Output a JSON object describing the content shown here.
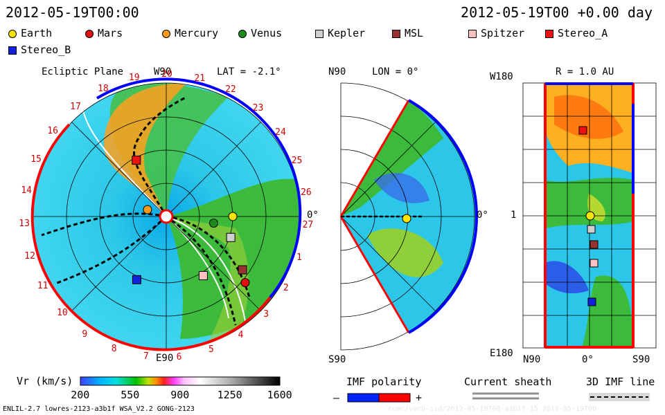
{
  "header": {
    "left_time": "2012-05-19T00:00",
    "right_time": "2012-05-19T00 +0.00 day"
  },
  "legend": [
    {
      "name": "Earth",
      "color": "#ffe400",
      "shape": "circle"
    },
    {
      "name": "Mars",
      "color": "#e01010",
      "shape": "circle"
    },
    {
      "name": "Mercury",
      "color": "#ff9a1a",
      "shape": "circle"
    },
    {
      "name": "Venus",
      "color": "#1e8a1e",
      "shape": "circle"
    },
    {
      "name": "Kepler",
      "color": "#d0d0d0",
      "shape": "square"
    },
    {
      "name": "MSL",
      "color": "#993333",
      "shape": "square"
    },
    {
      "name": "Spitzer",
      "color": "#ffc0c0",
      "shape": "square"
    },
    {
      "name": "Stereo_A",
      "color": "#ee1111",
      "shape": "square"
    },
    {
      "name": "Stereo_B",
      "color": "#1122dd",
      "shape": "square"
    }
  ],
  "panels": {
    "ecliptic": {
      "title": "Ecliptic Plane",
      "lat_label": "LAT = -2.1°",
      "top": "W90",
      "bottom": "E90",
      "right": "0°",
      "sector_numbers": [
        "19",
        "20",
        "21",
        "22",
        "23",
        "24",
        "25",
        "26",
        "27",
        "1",
        "2",
        "3",
        "4",
        "5",
        "6",
        "7",
        "8",
        "9",
        "10",
        "11",
        "12",
        "13",
        "14",
        "15",
        "16",
        "17",
        "18"
      ]
    },
    "meridional": {
      "top": "N90",
      "lon_label": "LON = 0°",
      "bottom": "S90",
      "right": "0°"
    },
    "radial": {
      "title": "R = 1.0 AU",
      "top_left": "W180",
      "bottom_left": "E180",
      "mid_left": "1",
      "x_left": "N90",
      "x_mid": "0°",
      "x_right": "S90"
    }
  },
  "colorbar": {
    "label": "Vr (km/s)",
    "ticks": [
      "200",
      "550",
      "900",
      "1250",
      "1600"
    ],
    "range": [
      200,
      1600
    ]
  },
  "imf_polarity": {
    "label": "IMF polarity",
    "minus": "–",
    "plus": "+",
    "colors": [
      "#0022ff",
      "#ff0000"
    ]
  },
  "current_sheath": {
    "label": "Current sheath"
  },
  "imf_line": {
    "label": "3D IMF line"
  },
  "footer": {
    "model": "ENLIL-2.7 lowres-2123-a3b1f WSA_V2.2 GONG-2123",
    "watermark": "ccmc/vecb-cid/2012-05-19T00-a3b1f-15 2012-05-19T00"
  },
  "chart_data": {
    "type": "heatmap",
    "quantity": "Vr (km/s)",
    "color_range": [
      200,
      1600
    ],
    "objects_ecliptic": [
      {
        "name": "Earth",
        "r_au": 1.0,
        "angle_deg": 0
      },
      {
        "name": "Mercury",
        "r_au": 0.3,
        "angle_deg": 160
      },
      {
        "name": "Venus",
        "r_au": 0.72,
        "angle_deg": -8
      },
      {
        "name": "Mars",
        "r_au": 1.55,
        "angle_deg": -40
      },
      {
        "name": "Kepler",
        "r_au": 1.02,
        "angle_deg": -18
      },
      {
        "name": "MSL",
        "r_au": 1.4,
        "angle_deg": -35
      },
      {
        "name": "Spitzer",
        "r_au": 1.05,
        "angle_deg": -58
      },
      {
        "name": "Stereo_A",
        "r_au": 0.96,
        "angle_deg": 118
      },
      {
        "name": "Stereo_B",
        "r_au": 1.05,
        "angle_deg": -115
      }
    ]
  }
}
